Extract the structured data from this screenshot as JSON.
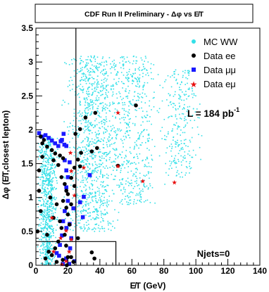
{
  "chart_data": {
    "type": "scatter",
    "title": "CDF Run II Preliminary - Δφ vs E̸T",
    "xlabel": "E̸T (GeV)",
    "ylabel": "Δφ (E̸T,closest lepton)",
    "xlim": [
      0,
      140
    ],
    "ylim": [
      0,
      3.5
    ],
    "x_ticks": [
      "0",
      "20",
      "40",
      "60",
      "80",
      "100",
      "120",
      "140"
    ],
    "y_ticks": [
      "0",
      "0.5",
      "1",
      "1.5",
      "2",
      "2.5",
      "3",
      "3.5"
    ],
    "grid": false,
    "legend_position": "top-right",
    "annotations": {
      "luminosity": "L = 184 pb",
      "luminosity_exponent": "-1",
      "njets": "Njets=0"
    },
    "cut_lines": {
      "vertical_met": 25,
      "low_region": {
        "x_max": 50,
        "y_max": 0.35
      }
    },
    "series": [
      {
        "name": "MC WW",
        "marker": "dot",
        "color": "#33e0e8",
        "density_regions": [
          {
            "x_center": 7,
            "x_spread": 5,
            "y_min": 0,
            "y_max": 1.9,
            "weight": 0.3
          },
          {
            "x_center": 35,
            "x_spread": 14,
            "y_min": 0.5,
            "y_max": 3.1,
            "weight": 0.4
          },
          {
            "x_center": 60,
            "x_spread": 14,
            "y_min": 0.9,
            "y_max": 3.1,
            "weight": 0.2
          },
          {
            "x_center": 90,
            "x_spread": 10,
            "y_min": 1.3,
            "y_max": 2.9,
            "weight": 0.1
          }
        ]
      },
      {
        "name": "Data ee",
        "marker": "circle",
        "color": "#000000",
        "points": [
          [
            37.1,
            2.25
          ],
          [
            31.0,
            2.18
          ],
          [
            62.5,
            2.36
          ],
          [
            27.6,
            2.01
          ],
          [
            24.7,
            1.94
          ],
          [
            38.2,
            1.73
          ],
          [
            34.9,
            1.68
          ],
          [
            28.2,
            1.66
          ],
          [
            26.3,
            1.56
          ],
          [
            27.6,
            1.46
          ],
          [
            51.3,
            1.47
          ],
          [
            24.1,
            1.44
          ],
          [
            22.1,
            1.29
          ],
          [
            24.1,
            1.17
          ],
          [
            26.3,
            0.4
          ],
          [
            22.0,
            0.12
          ],
          [
            18.9,
            0.29
          ],
          [
            20.0,
            0.12
          ],
          [
            34.9,
            0.19
          ],
          [
            36.6,
            0.1
          ],
          [
            23.4,
            0.05
          ],
          [
            19.3,
            0.0
          ],
          [
            16.8,
            0.08
          ],
          [
            3.0,
            1.9
          ],
          [
            5.0,
            1.85
          ],
          [
            4.0,
            1.8
          ],
          [
            7.0,
            1.75
          ],
          [
            10.0,
            1.7
          ],
          [
            12.0,
            1.65
          ],
          [
            15.0,
            1.62
          ],
          [
            17.0,
            1.58
          ],
          [
            4.0,
            1.6
          ],
          [
            11.0,
            1.55
          ],
          [
            14.0,
            1.48
          ],
          [
            16.0,
            1.3
          ],
          [
            18.0,
            1.2
          ],
          [
            19.0,
            1.1
          ],
          [
            20.0,
            1.05
          ],
          [
            17.0,
            0.95
          ],
          [
            19.0,
            0.85
          ],
          [
            20.0,
            0.75
          ],
          [
            15.0,
            0.65
          ],
          [
            16.0,
            0.55
          ],
          [
            18.0,
            0.45
          ],
          [
            14.0,
            0.35
          ],
          [
            12.0,
            0.25
          ],
          [
            8.0,
            0.2
          ],
          [
            10.0,
            0.15
          ],
          [
            6.0,
            0.1
          ],
          [
            13.0,
            0.05
          ],
          [
            2.0,
            1.1
          ],
          [
            3.0,
            0.8
          ],
          [
            1.0,
            0.5
          ],
          [
            2.0,
            1.4
          ],
          [
            9.0,
            1.0
          ],
          [
            11.0,
            0.7
          ],
          [
            13.0,
            0.9
          ],
          [
            7.0,
            0.45
          ],
          [
            21.0,
            0.6
          ],
          [
            22.0,
            0.9
          ]
        ]
      },
      {
        "name": "Data μμ",
        "marker": "square",
        "color": "#1a1aff",
        "points": [
          [
            17.3,
            1.94
          ],
          [
            16.3,
            1.85
          ],
          [
            15.5,
            1.83
          ],
          [
            19.0,
            1.76
          ],
          [
            17.8,
            1.78
          ],
          [
            21.1,
            1.52
          ],
          [
            27.6,
            0.93
          ],
          [
            29.3,
            0.71
          ],
          [
            33.7,
            1.33
          ],
          [
            29.9,
            1.01
          ],
          [
            23.4,
            0.84
          ],
          [
            21.1,
            0.61
          ],
          [
            22.1,
            0.4
          ],
          [
            21.4,
            0.25
          ],
          [
            20.8,
            0.02
          ],
          [
            18.9,
            0.1
          ],
          [
            24.1,
            0.06
          ],
          [
            16.8,
            0.02
          ],
          [
            14.5,
            0.14
          ],
          [
            16.3,
            0.44
          ],
          [
            2.0,
            1.95
          ],
          [
            4.0,
            1.9
          ],
          [
            6.0,
            1.92
          ],
          [
            8.0,
            1.88
          ],
          [
            10.0,
            1.84
          ],
          [
            12.0,
            1.8
          ],
          [
            14.0,
            1.76
          ],
          [
            18.0,
            1.55
          ],
          [
            19.0,
            1.4
          ],
          [
            20.0,
            1.3
          ],
          [
            19.0,
            1.15
          ],
          [
            20.0,
            0.95
          ],
          [
            18.0,
            0.8
          ],
          [
            17.0,
            0.65
          ],
          [
            19.0,
            0.55
          ],
          [
            15.0,
            0.3
          ],
          [
            13.0,
            0.18
          ]
        ]
      },
      {
        "name": "Data eμ",
        "marker": "star",
        "color": "#e81010",
        "points": [
          [
            51.3,
            2.25
          ],
          [
            21.6,
            1.66
          ],
          [
            22.1,
            1.39
          ],
          [
            29.9,
            1.44
          ],
          [
            51.3,
            1.46
          ],
          [
            66.8,
            1.24
          ],
          [
            86.6,
            1.22
          ],
          [
            24.1,
            1.03
          ],
          [
            18.9,
            0.51
          ],
          [
            15.5,
            0.4
          ],
          [
            22.1,
            0.38
          ],
          [
            20.8,
            0.2
          ],
          [
            18.9,
            0.06
          ],
          [
            16.3,
            0.01
          ],
          [
            10.0,
            0.7
          ],
          [
            11.0,
            0.2
          ]
        ]
      }
    ]
  }
}
